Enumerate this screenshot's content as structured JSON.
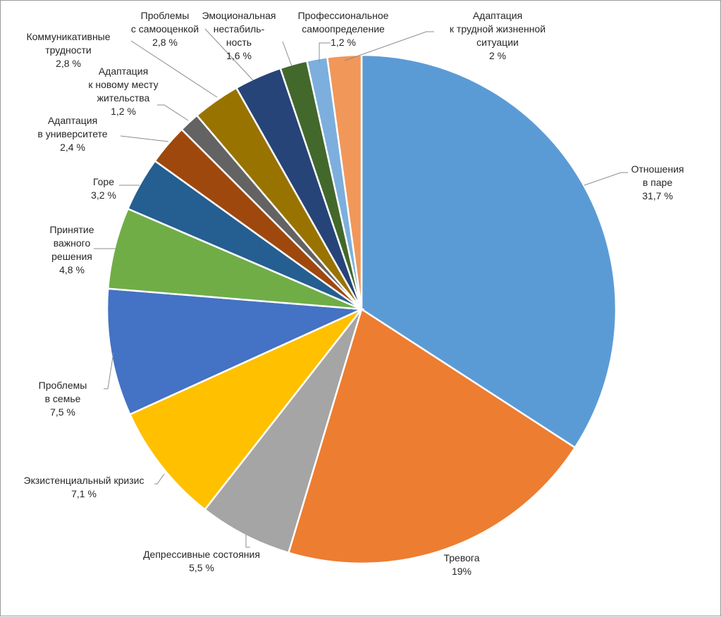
{
  "chart_data": {
    "type": "pie",
    "title": "",
    "legend": "none",
    "slices": [
      {
        "label": [
          "Отношения",
          "в паре"
        ],
        "value": 31.7,
        "value_text": "31,7 %",
        "color": "#5b9bd5"
      },
      {
        "label": [
          "Тревога"
        ],
        "value": 19,
        "value_text": "19%",
        "color": "#ed7d31"
      },
      {
        "label": [
          "Депрессивные состояния"
        ],
        "value": 5.5,
        "value_text": "5,5 %",
        "color": "#a5a5a5"
      },
      {
        "label": [
          "Экзистенциальный кризис"
        ],
        "value": 7.1,
        "value_text": "7,1 %",
        "color": "#ffc000"
      },
      {
        "label": [
          "Проблемы",
          "в семье"
        ],
        "value": 7.5,
        "value_text": "7,5 %",
        "color": "#4472c4"
      },
      {
        "label": [
          "Принятие",
          "важного",
          "решения"
        ],
        "value": 4.8,
        "value_text": "4,8 %",
        "color": "#70ad47"
      },
      {
        "label": [
          "Горе"
        ],
        "value": 3.2,
        "value_text": "3,2 %",
        "color": "#255e91"
      },
      {
        "label": [
          "Адаптация",
          "в университете"
        ],
        "value": 2.4,
        "value_text": "2,4 %",
        "color": "#9e480e"
      },
      {
        "label": [
          "Адаптация",
          "к новому месту",
          "жительства"
        ],
        "value": 1.2,
        "value_text": "1,2 %",
        "color": "#636363"
      },
      {
        "label": [
          "Коммуникативные",
          "трудности"
        ],
        "value": 2.8,
        "value_text": "2,8 %",
        "color": "#997300"
      },
      {
        "label": [
          "Проблемы",
          "с самооценкой"
        ],
        "value": 2.8,
        "value_text": "2,8 %",
        "color": "#264478"
      },
      {
        "label": [
          "Эмоциональная",
          "нестабиль-",
          "ность"
        ],
        "value": 1.6,
        "value_text": "1,6 %",
        "color": "#43682b"
      },
      {
        "label": [
          "Профессиональное",
          "самоопределение"
        ],
        "value": 1.2,
        "value_text": "1,2 %",
        "color": "#7cafdd"
      },
      {
        "label": [
          "Адаптация",
          "к трудной жизненной",
          "ситуации"
        ],
        "value": 2,
        "value_text": "2 %",
        "color": "#f1975a"
      }
    ]
  }
}
